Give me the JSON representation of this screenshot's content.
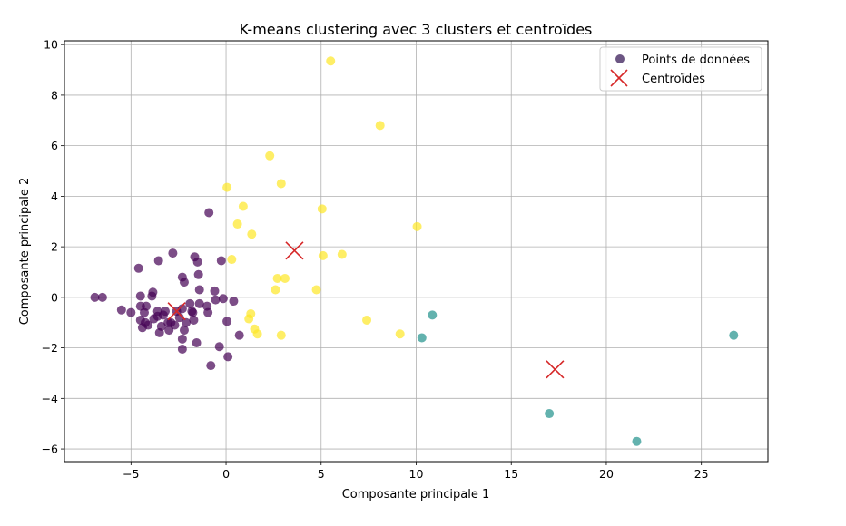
{
  "chart_data": {
    "type": "scatter",
    "title": "K-means clustering avec 3 clusters et centroïdes",
    "xlabel": "Composante principale 1",
    "ylabel": "Composante principale 2",
    "xlim": [
      -8.5,
      28.5
    ],
    "ylim": [
      -6.5,
      10.15
    ],
    "xticks": [
      -5,
      0,
      5,
      10,
      15,
      20,
      25
    ],
    "yticks": [
      -6,
      -4,
      -2,
      0,
      2,
      4,
      6,
      8,
      10
    ],
    "xtick_labels": [
      "−5",
      "0",
      "5",
      "10",
      "15",
      "20",
      "25"
    ],
    "ytick_labels": [
      "−6",
      "−4",
      "−2",
      "0",
      "2",
      "4",
      "6",
      "8",
      "10"
    ],
    "grid": true,
    "legend_position": "top-right",
    "legend": [
      {
        "label": "Points de données",
        "marker": "circle",
        "color": "#3b1e5a"
      },
      {
        "label": "Centroïdes",
        "marker": "x",
        "color": "#d62728"
      }
    ],
    "cluster_colors": [
      "#440154",
      "#21918c",
      "#fde725"
    ],
    "clusters": [
      {
        "id": 0,
        "points": [
          [
            -6.9,
            0.0
          ],
          [
            -6.5,
            0.0
          ],
          [
            -5.5,
            -0.5
          ],
          [
            -5.0,
            -0.6
          ],
          [
            -4.6,
            1.15
          ],
          [
            -4.5,
            0.05
          ],
          [
            -4.5,
            -0.35
          ],
          [
            -4.5,
            -0.9
          ],
          [
            -4.4,
            -1.2
          ],
          [
            -4.3,
            -0.6
          ],
          [
            -4.25,
            -1.0
          ],
          [
            -4.2,
            -0.35
          ],
          [
            -4.1,
            -1.1
          ],
          [
            -3.9,
            0.05
          ],
          [
            -3.85,
            0.2
          ],
          [
            -3.8,
            -0.85
          ],
          [
            -3.6,
            -0.55
          ],
          [
            -3.6,
            -0.75
          ],
          [
            -3.55,
            1.45
          ],
          [
            -3.5,
            -1.4
          ],
          [
            -3.4,
            -1.15
          ],
          [
            -3.3,
            -0.7
          ],
          [
            -3.2,
            -0.55
          ],
          [
            -3.05,
            -1.0
          ],
          [
            -3.0,
            -1.3
          ],
          [
            -2.9,
            -1.0
          ],
          [
            -2.8,
            1.75
          ],
          [
            -2.7,
            -1.1
          ],
          [
            -2.6,
            -0.55
          ],
          [
            -2.45,
            -0.8
          ],
          [
            -2.3,
            0.8
          ],
          [
            -2.3,
            -0.45
          ],
          [
            -2.3,
            -1.65
          ],
          [
            -2.3,
            -2.05
          ],
          [
            -2.2,
            0.6
          ],
          [
            -2.2,
            -1.3
          ],
          [
            -2.1,
            -1.0
          ],
          [
            -1.9,
            -0.25
          ],
          [
            -1.8,
            -0.55
          ],
          [
            -1.75,
            -0.6
          ],
          [
            -1.7,
            -0.9
          ],
          [
            -1.65,
            1.6
          ],
          [
            -1.55,
            -1.8
          ],
          [
            -1.5,
            1.4
          ],
          [
            -1.45,
            0.9
          ],
          [
            -1.4,
            0.3
          ],
          [
            -1.4,
            -0.25
          ],
          [
            -1.0,
            -0.35
          ],
          [
            -0.95,
            -0.6
          ],
          [
            -0.9,
            3.35
          ],
          [
            -0.8,
            -2.7
          ],
          [
            -0.6,
            0.25
          ],
          [
            -0.55,
            -0.1
          ],
          [
            -0.35,
            -1.95
          ],
          [
            -0.25,
            1.45
          ],
          [
            -0.15,
            -0.05
          ],
          [
            0.05,
            -0.95
          ],
          [
            0.1,
            -2.35
          ],
          [
            0.4,
            -0.15
          ],
          [
            0.7,
            -1.5
          ]
        ]
      },
      {
        "id": 1,
        "points": [
          [
            10.3,
            -1.6
          ],
          [
            10.85,
            -0.7
          ],
          [
            17.0,
            -4.6
          ],
          [
            21.6,
            -5.7
          ],
          [
            26.7,
            -1.5
          ]
        ]
      },
      {
        "id": 2,
        "points": [
          [
            0.05,
            4.35
          ],
          [
            0.3,
            1.5
          ],
          [
            0.6,
            2.9
          ],
          [
            0.9,
            3.6
          ],
          [
            1.2,
            -0.85
          ],
          [
            1.3,
            -0.65
          ],
          [
            1.35,
            2.5
          ],
          [
            1.5,
            -1.25
          ],
          [
            1.65,
            -1.45
          ],
          [
            2.3,
            5.6
          ],
          [
            2.6,
            0.3
          ],
          [
            2.7,
            0.75
          ],
          [
            2.9,
            4.5
          ],
          [
            2.9,
            -1.5
          ],
          [
            3.1,
            0.75
          ],
          [
            4.75,
            0.3
          ],
          [
            5.05,
            3.5
          ],
          [
            5.1,
            1.65
          ],
          [
            5.5,
            9.35
          ],
          [
            6.1,
            1.7
          ],
          [
            7.4,
            -0.9
          ],
          [
            8.1,
            6.8
          ],
          [
            9.15,
            -1.45
          ],
          [
            10.05,
            2.8
          ]
        ]
      }
    ],
    "centroids": [
      [
        -2.6,
        -0.55
      ],
      [
        17.3,
        -2.85
      ],
      [
        3.6,
        1.85
      ]
    ]
  }
}
